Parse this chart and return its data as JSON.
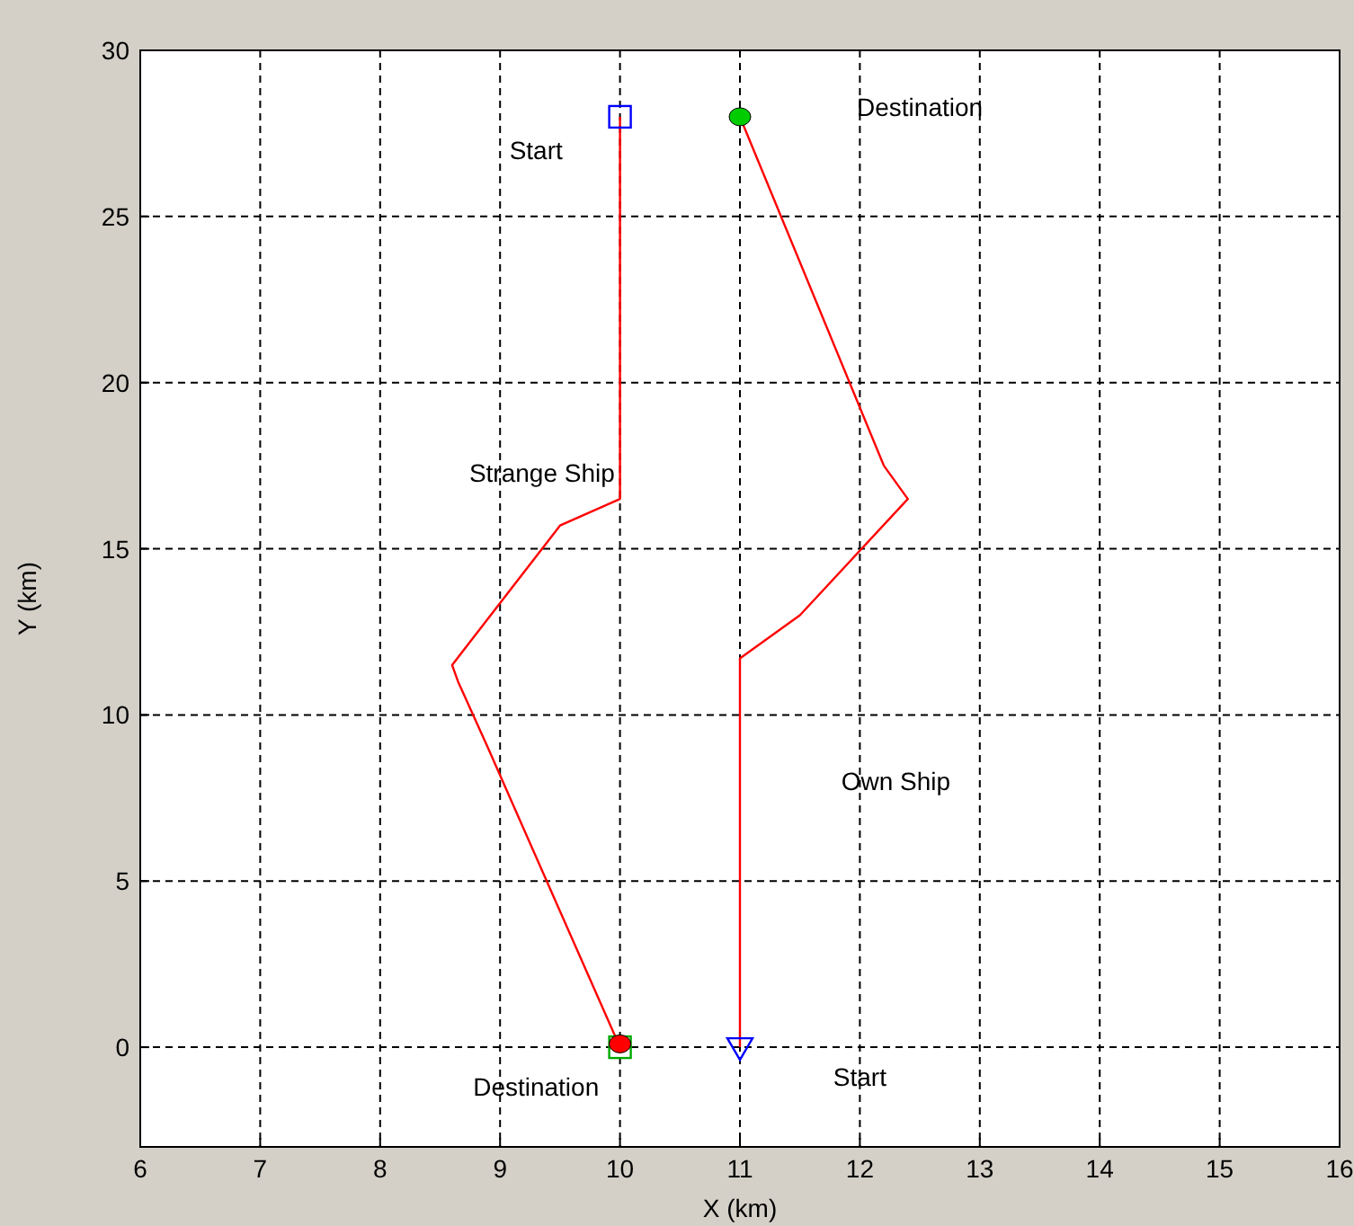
{
  "chart_data": {
    "type": "line",
    "xlabel": "X (km)",
    "ylabel": "Y (km)",
    "xlim": [
      6,
      16
    ],
    "ylim": [
      -3,
      30
    ],
    "xticks": [
      6,
      7,
      8,
      9,
      10,
      11,
      12,
      13,
      14,
      15,
      16
    ],
    "yticks": [
      0,
      5,
      10,
      15,
      20,
      25,
      30
    ],
    "grid": true,
    "line_style": "solid",
    "series": [
      {
        "color": "#ff0000",
        "marker": "none",
        "x": [
          10,
          10,
          10,
          9.5,
          8.6,
          8.65,
          8.9,
          10
        ],
        "values": [
          28,
          26,
          16.5,
          15.7,
          11.5,
          11,
          9,
          0
        ]
      },
      {
        "color": "#ff0000",
        "marker": "none",
        "x": [
          11,
          11,
          11.5,
          12.4,
          12.2,
          11
        ],
        "values": [
          0,
          11.7,
          13,
          16.5,
          17.5,
          28
        ]
      },
      {
        "type": "scatter",
        "color": "#0000ff",
        "marker": "square",
        "x": [
          10
        ],
        "values": [
          28
        ]
      },
      {
        "type": "scatter",
        "color": "#00aa00",
        "marker": "square",
        "x": [
          10
        ],
        "values": [
          0
        ]
      },
      {
        "type": "scatter",
        "color": "#ff0000",
        "marker": "circle",
        "x": [
          10
        ],
        "values": [
          0.1
        ]
      },
      {
        "type": "scatter",
        "color": "#0000ff",
        "marker": "triangle",
        "x": [
          11
        ],
        "values": [
          0
        ]
      },
      {
        "type": "scatter",
        "color": "#00cc00",
        "marker": "circle",
        "x": [
          11
        ],
        "values": [
          28
        ]
      }
    ],
    "annotations": [
      "Start",
      "Destination",
      "Strange Ship",
      "Own Ship",
      "Destination",
      "Start"
    ]
  }
}
